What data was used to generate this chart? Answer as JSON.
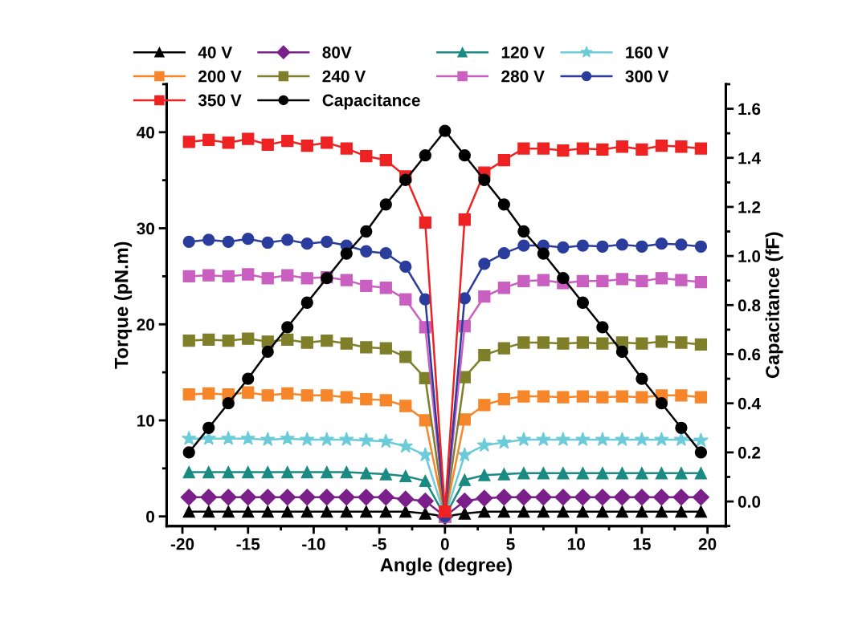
{
  "chart_data": {
    "type": "line",
    "x": [
      -19.5,
      -18,
      -16.5,
      -15,
      -13.5,
      -12,
      -10.5,
      -9,
      -7.5,
      -6,
      -4.5,
      -3,
      -1.5,
      0,
      1.5,
      3,
      4.5,
      6,
      7.5,
      9,
      10.5,
      12,
      13.5,
      15,
      16.5,
      18,
      19.5
    ],
    "xlabel": "Angle (degree)",
    "ylabel": "Torque (pN.m)",
    "y2label": "Capacitance (fF)",
    "xlim": [
      -21.2,
      21.4
    ],
    "xticks": [
      -20,
      -15,
      -10,
      -5,
      0,
      5,
      10,
      15,
      20
    ],
    "ylim": [
      -1,
      45
    ],
    "yticks": [
      0,
      10,
      20,
      30,
      40
    ],
    "y2lim": [
      -0.1,
      1.7
    ],
    "y2ticks": [
      {
        "value": 0,
        "label": "0.0"
      },
      0.2,
      0.4,
      0.6,
      0.8,
      {
        "value": 1,
        "label": "1.0"
      },
      1.2,
      1.4,
      1.6
    ],
    "legend": "top",
    "grid": false,
    "series": [
      {
        "name": "40 V",
        "color": "#000000",
        "marker": "triangle",
        "values": [
          0.5,
          0.5,
          0.5,
          0.5,
          0.5,
          0.5,
          0.5,
          0.5,
          0.5,
          0.5,
          0.5,
          0.5,
          0.3,
          0,
          0.3,
          0.5,
          0.5,
          0.5,
          0.5,
          0.5,
          0.5,
          0.5,
          0.5,
          0.5,
          0.5,
          0.5,
          0.5
        ]
      },
      {
        "name": "80V",
        "color": "#7b1f8a",
        "marker": "diamond",
        "values": [
          2.0,
          2.0,
          2.0,
          2.0,
          2.0,
          2.0,
          2.0,
          2.0,
          2.0,
          2.0,
          2.0,
          1.8,
          1.6,
          0,
          1.6,
          1.9,
          2.0,
          2.0,
          2.0,
          2.0,
          2.0,
          2.0,
          2.0,
          2.0,
          2.0,
          2.0,
          2.0
        ]
      },
      {
        "name": "120 V",
        "color": "#1a8a82",
        "marker": "triangle",
        "values": [
          4.6,
          4.6,
          4.6,
          4.6,
          4.6,
          4.6,
          4.6,
          4.6,
          4.6,
          4.5,
          4.4,
          4.2,
          3.7,
          0,
          3.8,
          4.3,
          4.4,
          4.5,
          4.5,
          4.5,
          4.5,
          4.5,
          4.5,
          4.5,
          4.5,
          4.5,
          4.5
        ]
      },
      {
        "name": "160 V",
        "color": "#6ccbd8",
        "marker": "star",
        "values": [
          8.1,
          8.1,
          8.1,
          8.1,
          8.0,
          8.1,
          8.0,
          8.0,
          8.0,
          7.9,
          7.8,
          7.3,
          6.4,
          0,
          6.4,
          7.4,
          7.7,
          8.0,
          8.0,
          8.0,
          8.0,
          8.0,
          8.0,
          8.0,
          8.0,
          8.0,
          7.9
        ]
      },
      {
        "name": "200 V",
        "color": "#f7862a",
        "marker": "square",
        "values": [
          12.7,
          12.8,
          12.7,
          12.9,
          12.6,
          12.8,
          12.6,
          12.6,
          12.4,
          12.2,
          12.1,
          11.5,
          10.0,
          0,
          10.1,
          11.6,
          12.2,
          12.5,
          12.5,
          12.4,
          12.5,
          12.4,
          12.5,
          12.4,
          12.6,
          12.6,
          12.4
        ]
      },
      {
        "name": "240 V",
        "color": "#7f7f2a",
        "marker": "square",
        "values": [
          18.3,
          18.4,
          18.3,
          18.5,
          18.2,
          18.4,
          18.1,
          18.3,
          18.0,
          17.6,
          17.5,
          16.6,
          14.4,
          0,
          14.5,
          16.8,
          17.5,
          18.1,
          18.1,
          18.0,
          18.1,
          18.0,
          18.1,
          18.0,
          18.2,
          18.1,
          17.9
        ]
      },
      {
        "name": "280 V",
        "color": "#c95fc0",
        "marker": "square",
        "values": [
          25.0,
          25.1,
          25.0,
          25.2,
          24.8,
          25.1,
          24.8,
          24.9,
          24.6,
          24.0,
          23.8,
          22.6,
          19.7,
          0,
          19.8,
          22.9,
          23.8,
          24.5,
          24.6,
          24.3,
          24.5,
          24.5,
          24.7,
          24.5,
          24.8,
          24.6,
          24.4
        ]
      },
      {
        "name": "300 V",
        "color": "#2b3d9c",
        "marker": "circle",
        "values": [
          28.6,
          28.8,
          28.6,
          28.9,
          28.5,
          28.8,
          28.4,
          28.6,
          28.2,
          27.6,
          27.4,
          26.0,
          22.6,
          0,
          22.7,
          26.3,
          27.4,
          28.2,
          28.2,
          28.0,
          28.2,
          28.1,
          28.3,
          28.1,
          28.4,
          28.3,
          28.1
        ]
      },
      {
        "name": "350 V",
        "color": "#ee2222",
        "marker": "square",
        "values": [
          39.0,
          39.2,
          38.9,
          39.3,
          38.7,
          39.1,
          38.6,
          38.9,
          38.3,
          37.5,
          37.1,
          35.4,
          30.6,
          0.5,
          30.9,
          35.8,
          37.1,
          38.3,
          38.3,
          38.1,
          38.3,
          38.2,
          38.5,
          38.2,
          38.6,
          38.5,
          38.3
        ]
      },
      {
        "name": "Capacitance",
        "color": "#000000",
        "marker": "circle",
        "axis": "y2",
        "values": [
          0.2,
          0.3,
          0.4,
          0.5,
          0.61,
          0.71,
          0.81,
          0.91,
          1.01,
          1.1,
          1.21,
          1.31,
          1.41,
          1.51,
          1.41,
          1.31,
          1.21,
          1.1,
          1.01,
          0.91,
          0.81,
          0.71,
          0.61,
          0.5,
          0.4,
          0.3,
          0.2
        ]
      }
    ]
  }
}
